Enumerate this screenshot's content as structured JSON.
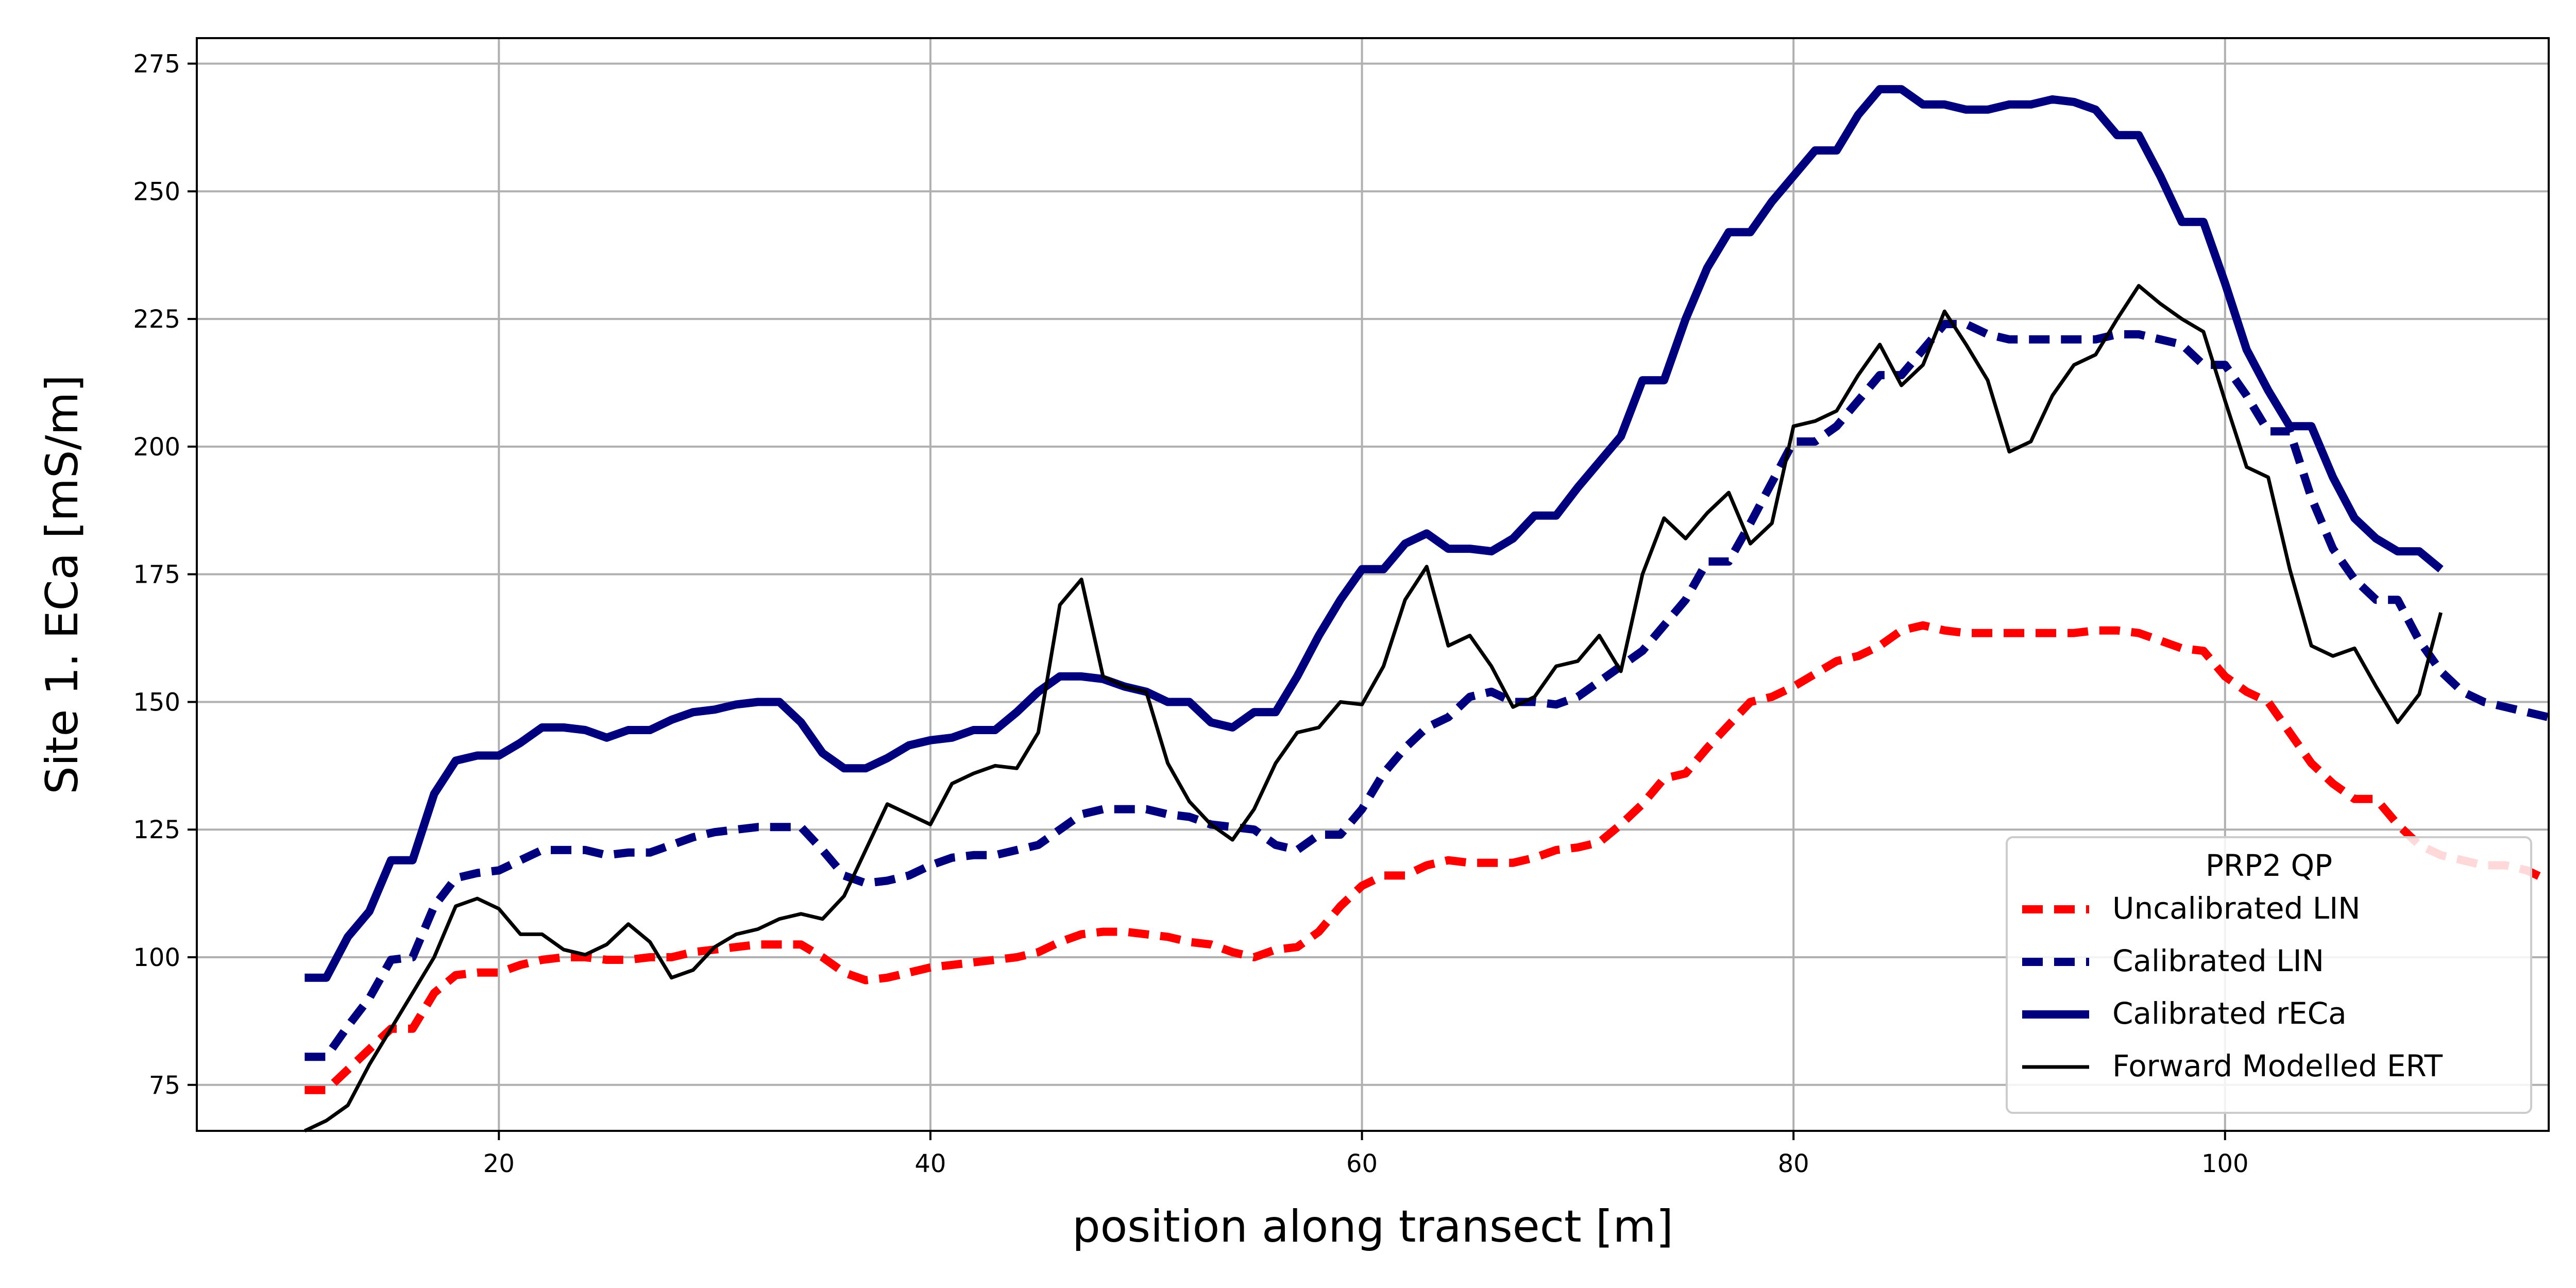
{
  "chart_data": {
    "type": "line",
    "title": "",
    "xlabel": "position along transect [m]",
    "ylabel": "Site 1. ECa [mS/m]",
    "xlim": [
      6,
      115
    ],
    "ylim": [
      66,
      280
    ],
    "xticks": [
      20,
      40,
      60,
      80,
      100
    ],
    "yticks": [
      75,
      100,
      125,
      150,
      175,
      200,
      225,
      250,
      275
    ],
    "grid": true,
    "legend": {
      "title": "PRP2 QP",
      "placement": "lower-right"
    },
    "x_start": 11,
    "x_step": 1,
    "series": [
      {
        "name": "Uncalibrated LIN",
        "color": "#ff0000",
        "style": "dashed",
        "values": [
          74,
          74,
          78,
          82,
          86,
          86,
          93,
          96.5,
          97,
          97,
          98.5,
          99.5,
          100,
          100,
          99.5,
          99.5,
          100,
          100,
          101,
          101.5,
          102,
          102.5,
          102.5,
          102.5,
          100,
          97,
          95.5,
          96,
          97,
          98,
          98.5,
          99,
          99.5,
          100,
          101,
          103,
          104.5,
          105,
          105,
          104.5,
          104,
          103,
          102.5,
          101,
          100,
          101.5,
          102,
          105,
          110,
          114,
          116,
          116,
          118,
          119,
          118.5,
          118.5,
          118.5,
          119.5,
          121,
          121.5,
          122.5,
          126,
          130,
          135,
          136,
          141,
          145.5,
          150,
          151,
          153,
          155.5,
          158,
          159,
          161,
          164,
          165,
          164,
          163.5,
          163.5,
          163.5,
          163.5,
          163.5,
          163.5,
          164,
          164,
          163.5,
          162,
          160.5,
          160,
          155,
          152,
          150,
          144,
          138,
          134,
          131,
          131,
          126,
          122,
          120,
          119,
          118,
          118,
          117,
          115
        ]
      },
      {
        "name": "Calibrated LIN",
        "color": "#00007f",
        "style": "dashed",
        "values": [
          80.5,
          80.5,
          86.5,
          92,
          99.5,
          100,
          110,
          115.5,
          116.5,
          117,
          119,
          121,
          121,
          121,
          120,
          120.5,
          120.5,
          122,
          123.5,
          124.5,
          125,
          125.5,
          125.5,
          125.5,
          121,
          116,
          114.5,
          115,
          116,
          118,
          119.5,
          120,
          120,
          121,
          122,
          125,
          128,
          129,
          129,
          129,
          128,
          127.5,
          126,
          125.5,
          125,
          122,
          121,
          124,
          124,
          129,
          136,
          141,
          145,
          147,
          151,
          152,
          150,
          150,
          149.5,
          151,
          154,
          157,
          160,
          165,
          170,
          177.5,
          177.5,
          185,
          193,
          201,
          201,
          204,
          209,
          214,
          214,
          219,
          224,
          224,
          222,
          221,
          221,
          221,
          221,
          221,
          222,
          222,
          221,
          220,
          216,
          216,
          210,
          203,
          203,
          190,
          180,
          174,
          170,
          170,
          162,
          156,
          152,
          150,
          149,
          148,
          147
        ]
      },
      {
        "name": "Calibrated rECa",
        "color": "#00007f",
        "style": "solid-thick",
        "values": [
          96,
          96,
          104,
          109,
          119,
          119,
          132,
          138.5,
          139.5,
          139.5,
          142,
          145,
          145,
          144.5,
          143,
          144.5,
          144.5,
          146.5,
          148,
          148.5,
          149.5,
          150,
          150,
          146,
          140,
          137,
          137,
          139,
          141.5,
          142.5,
          143,
          144.5,
          144.5,
          148,
          152,
          155,
          155,
          154.5,
          153,
          152,
          150,
          150,
          146,
          145,
          148,
          148,
          155,
          163,
          170,
          176,
          176,
          181,
          183,
          180,
          180,
          179.5,
          182,
          186.5,
          186.5,
          192,
          197,
          202,
          213,
          213,
          225,
          235,
          242,
          242,
          248,
          253,
          258,
          258,
          265,
          270,
          270,
          267,
          267,
          266,
          266,
          267,
          267,
          268,
          267.5,
          266,
          261,
          261,
          253,
          244,
          244,
          232,
          219,
          211,
          204,
          204,
          194,
          186,
          182,
          179.5,
          179.5,
          176
        ]
      },
      {
        "name": "Forward Modelled ERT",
        "color": "#000000",
        "style": "solid",
        "values": [
          66,
          68,
          71,
          79,
          86,
          93,
          100,
          110,
          111.5,
          109.5,
          104.5,
          104.5,
          101.5,
          100.5,
          102.5,
          106.5,
          103,
          96,
          97.5,
          102,
          104.5,
          105.5,
          107.5,
          108.5,
          107.5,
          112,
          121,
          130,
          128,
          126,
          134,
          136,
          137.5,
          137,
          144,
          169,
          174,
          155,
          153,
          152,
          138,
          130.5,
          126,
          123,
          129,
          138,
          144,
          145,
          150,
          149.5,
          157,
          170,
          176.5,
          161,
          163,
          157,
          149,
          151,
          157,
          158,
          163,
          156,
          175,
          186,
          182,
          187,
          191,
          181,
          185,
          204,
          205,
          207,
          214,
          220,
          212,
          216,
          226.5,
          220,
          213,
          199,
          201,
          210,
          216,
          218,
          225,
          231.5,
          228,
          225,
          222.5,
          209,
          196,
          194,
          176,
          161,
          159,
          160.5,
          153,
          146,
          151.5,
          167.5
        ]
      }
    ]
  }
}
